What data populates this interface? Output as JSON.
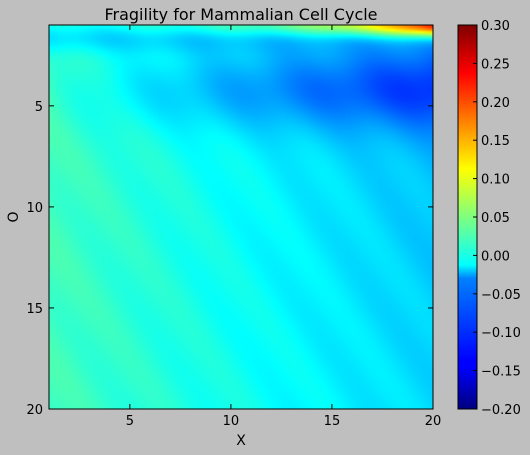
{
  "chart_data": {
    "type": "heatmap",
    "title": "Fragility for Mammalian Cell Cycle",
    "xlabel": "X",
    "ylabel": "O",
    "xlim": [
      1,
      20
    ],
    "ylim": [
      20,
      1
    ],
    "xticks": [
      "5",
      "10",
      "15",
      "20"
    ],
    "yticks": [
      "5",
      "10",
      "15",
      "20"
    ],
    "xtick_values": [
      5,
      10,
      15,
      20
    ],
    "ytick_values": [
      5,
      10,
      15,
      20
    ],
    "colormap": "jet",
    "colorbar": {
      "min": -0.2,
      "max": 0.3,
      "ticks": [
        "0.30",
        "0.25",
        "0.20",
        "0.15",
        "0.10",
        "0.05",
        "0.00",
        "−0.05",
        "−0.10",
        "−0.15",
        "−0.20"
      ],
      "tick_values": [
        0.3,
        0.25,
        0.2,
        0.15,
        0.1,
        0.05,
        0.0,
        -0.05,
        -0.1,
        -0.15,
        -0.2
      ]
    },
    "value_summary": {
      "top_right_max": 0.29,
      "top_row_mid": 0.1,
      "band_near_O5_right": -0.1,
      "upper_left": 0.0,
      "lower_left": 0.02,
      "lower_right": -0.03
    },
    "grid": false,
    "legend": "none"
  }
}
